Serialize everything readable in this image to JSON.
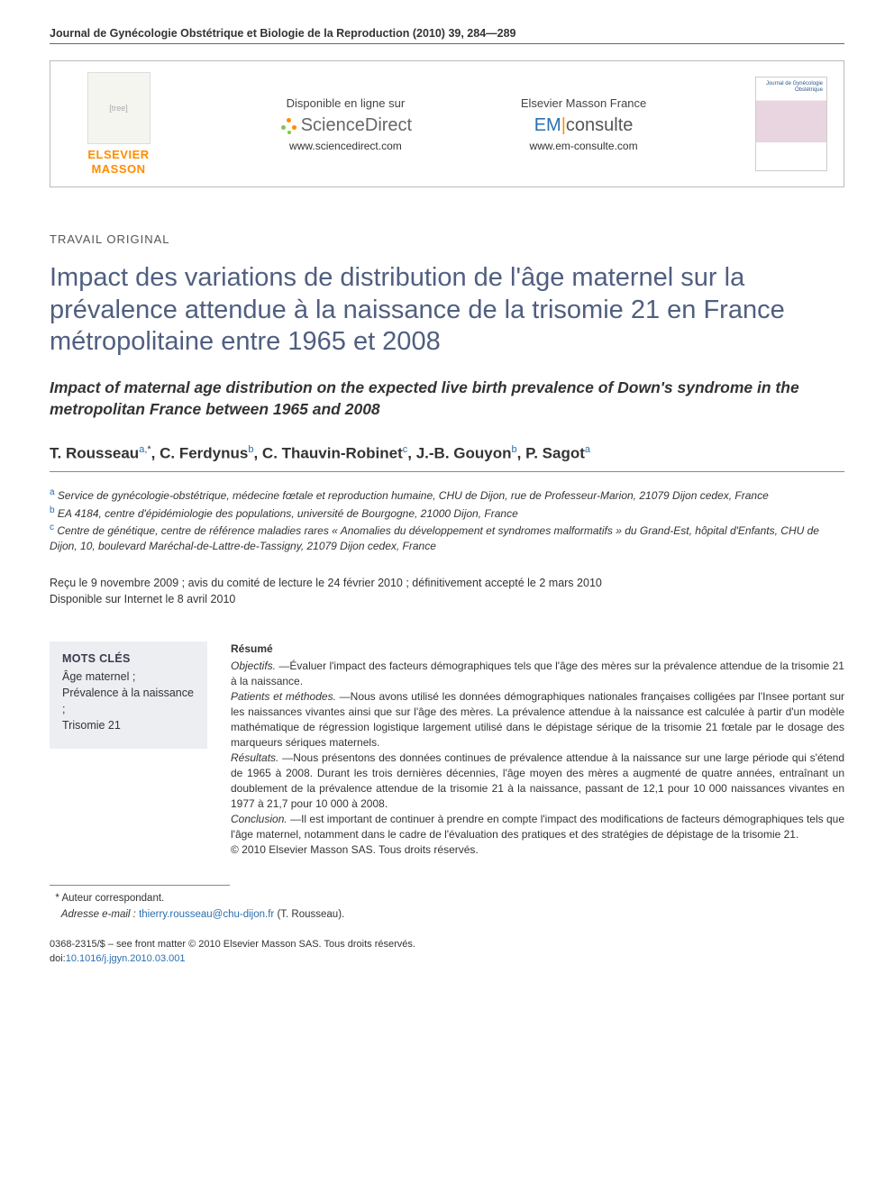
{
  "journal_ref": "Journal de Gynécologie Obstétrique et Biologie de la Reproduction (2010) 39, 284—289",
  "header": {
    "publisher": "ELSEVIER MASSON",
    "online": {
      "label": "Disponible en ligne sur",
      "brand": "ScienceDirect",
      "url": "www.sciencedirect.com"
    },
    "em": {
      "label": "Elsevier Masson France",
      "brand_em": "EM",
      "brand_cons": "consulte",
      "url": "www.em-consulte.com"
    },
    "cover": "Journal de Gynécologie Obstétrique"
  },
  "article_type": "TRAVAIL ORIGINAL",
  "title_fr": "Impact des variations de distribution de l'âge maternel sur la prévalence attendue à la naissance de la trisomie 21 en France métropolitaine entre 1965 et 2008",
  "title_en": "Impact of maternal age distribution on the expected live birth prevalence of Down's syndrome in the metropolitan France between 1965 and 2008",
  "authors": [
    {
      "name": "T. Rousseau",
      "aff": "a",
      "corr": true
    },
    {
      "name": "C. Ferdynus",
      "aff": "b"
    },
    {
      "name": "C. Thauvin-Robinet",
      "aff": "c"
    },
    {
      "name": "J.-B. Gouyon",
      "aff": "b"
    },
    {
      "name": "P. Sagot",
      "aff": "a"
    }
  ],
  "affiliations": {
    "a": "Service de gynécologie-obstétrique, médecine fœtale et reproduction humaine, CHU de Dijon, rue de Professeur-Marion, 21079 Dijon cedex, France",
    "b": "EA 4184, centre d'épidémiologie des populations, université de Bourgogne, 21000 Dijon, France",
    "c": "Centre de génétique, centre de référence maladies rares « Anomalies du développement et syndromes malformatifs » du Grand-Est, hôpital d'Enfants, CHU de Dijon, 10, boulevard Maréchal-de-Lattre-de-Tassigny, 21079 Dijon cedex, France"
  },
  "dates": {
    "received": "Reçu le 9 novembre 2009 ; avis du comité de lecture le 24 février 2010 ; définitivement accepté le 2 mars 2010",
    "online": "Disponible sur Internet le 8 avril 2010"
  },
  "keywords": {
    "title": "MOTS CLÉS",
    "items": "Âge maternel ;\nPrévalence à la naissance ;\nTrisomie 21"
  },
  "abstract": {
    "heading": "Résumé",
    "objectifs_label": "Objectifs. —",
    "objectifs": "Évaluer l'impact des facteurs démographiques tels que l'âge des mères sur la prévalence attendue de la trisomie 21 à la naissance.",
    "patients_label": "Patients et méthodes. —",
    "patients": "Nous avons utilisé les données démographiques nationales françaises colligées par l'Insee portant sur les naissances vivantes ainsi que sur l'âge des mères. La prévalence attendue à la naissance est calculée à partir d'un modèle mathématique de régression logistique largement utilisé dans le dépistage sérique de la trisomie 21 fœtale par le dosage des marqueurs sériques maternels.",
    "resultats_label": "Résultats. —",
    "resultats": "Nous présentons des données continues de prévalence attendue à la naissance sur une large période qui s'étend de 1965 à 2008. Durant les trois dernières décennies, l'âge moyen des mères a augmenté de quatre années, entraînant un doublement de la prévalence attendue de la trisomie 21 à la naissance, passant de 12,1 pour 10 000 naissances vivantes en 1977 à 21,7 pour 10 000 à 2008.",
    "conclusion_label": "Conclusion. —",
    "conclusion": "Il est important de continuer à prendre en compte l'impact des modifications de facteurs démographiques tels que l'âge maternel, notamment dans le cadre de l'évaluation des pratiques et des stratégies de dépistage de la trisomie 21.",
    "copyright": "© 2010 Elsevier Masson SAS. Tous droits réservés."
  },
  "footnotes": {
    "corr": "Auteur correspondant.",
    "email_label": "Adresse e-mail :",
    "email": "thierry.rousseau@chu-dijon.fr",
    "email_person": "(T. Rousseau)."
  },
  "bottom": {
    "issn": "0368-2315/$ – see front matter © 2010 Elsevier Masson SAS. Tous droits réservés.",
    "doi_label": "doi:",
    "doi": "10.1016/j.jgyn.2010.03.001"
  },
  "colors": {
    "title": "#505f80",
    "link": "#2a6fb0",
    "orange": "#ff8c00",
    "kw_bg": "#eceef1"
  }
}
